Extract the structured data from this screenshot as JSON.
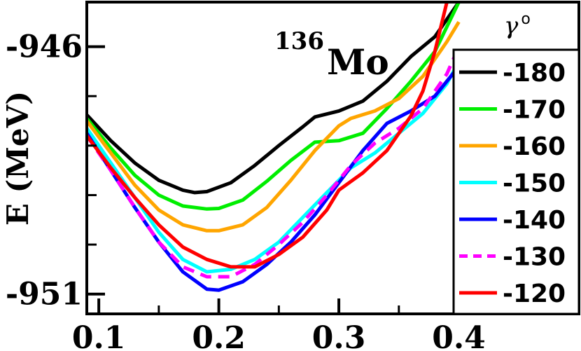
{
  "chart_data": {
    "type": "line",
    "title": "Mo",
    "title_superscript": "136",
    "xlabel": "",
    "ylabel": "E (MeV)",
    "xlim": [
      0.09,
      0.5
    ],
    "ylim": [
      -951.4,
      -945.1
    ],
    "xticks": [
      0.1,
      0.2,
      0.3,
      0.4
    ],
    "xtick_labels": [
      "0.1",
      "0.2",
      "0.3",
      "0.4"
    ],
    "yticks": [
      -946,
      -951
    ],
    "ytick_labels": [
      "-946",
      "-951"
    ],
    "legend_title": "γ",
    "legend_title_superscript": "o",
    "legend_position": "right",
    "series": [
      {
        "name": "-180",
        "color": "#000000",
        "dash": "solid",
        "x": [
          0.09,
          0.11,
          0.13,
          0.15,
          0.17,
          0.18,
          0.19,
          0.21,
          0.23,
          0.25,
          0.27,
          0.28,
          0.3,
          0.32,
          0.34,
          0.36,
          0.38,
          0.4
        ],
        "y": [
          -947.38,
          -947.9,
          -948.35,
          -948.7,
          -948.9,
          -948.95,
          -948.93,
          -948.75,
          -948.4,
          -948.0,
          -947.62,
          -947.42,
          -947.3,
          -947.1,
          -946.7,
          -946.2,
          -945.8,
          -945.1
        ]
      },
      {
        "name": "-170",
        "color": "#00ee00",
        "dash": "solid",
        "x": [
          0.09,
          0.11,
          0.13,
          0.15,
          0.17,
          0.19,
          0.2,
          0.22,
          0.24,
          0.26,
          0.28,
          0.3,
          0.32,
          0.34,
          0.36,
          0.38,
          0.4
        ],
        "y": [
          -947.45,
          -948.05,
          -948.6,
          -949.0,
          -949.22,
          -949.28,
          -949.27,
          -949.1,
          -948.72,
          -948.3,
          -947.93,
          -947.9,
          -947.75,
          -947.25,
          -946.7,
          -946.1,
          -945.1
        ]
      },
      {
        "name": "-160",
        "color": "#ffa500",
        "dash": "solid",
        "x": [
          0.09,
          0.11,
          0.13,
          0.15,
          0.17,
          0.19,
          0.2,
          0.22,
          0.24,
          0.26,
          0.28,
          0.3,
          0.31,
          0.33,
          0.35,
          0.37,
          0.39,
          0.4
        ],
        "y": [
          -947.5,
          -948.15,
          -948.8,
          -949.3,
          -949.6,
          -949.72,
          -949.72,
          -949.6,
          -949.25,
          -948.7,
          -948.1,
          -947.6,
          -947.45,
          -947.3,
          -947.05,
          -946.6,
          -945.9,
          -945.5
        ]
      },
      {
        "name": "-150",
        "color": "#00ffff",
        "dash": "solid",
        "x": [
          0.09,
          0.11,
          0.13,
          0.15,
          0.17,
          0.19,
          0.21,
          0.23,
          0.25,
          0.27,
          0.29,
          0.31,
          0.33,
          0.35,
          0.37,
          0.39,
          0.4
        ],
        "y": [
          -947.65,
          -948.35,
          -949.05,
          -949.75,
          -950.3,
          -950.55,
          -950.5,
          -950.3,
          -949.95,
          -949.45,
          -948.95,
          -948.45,
          -948.15,
          -947.75,
          -947.35,
          -946.75,
          -946.3
        ]
      },
      {
        "name": "-140",
        "color": "#0000ff",
        "dash": "solid",
        "x": [
          0.09,
          0.11,
          0.13,
          0.15,
          0.17,
          0.19,
          0.2,
          0.22,
          0.24,
          0.26,
          0.28,
          0.3,
          0.32,
          0.34,
          0.36,
          0.38,
          0.4
        ],
        "y": [
          -947.75,
          -948.5,
          -949.25,
          -949.95,
          -950.55,
          -950.9,
          -950.92,
          -950.75,
          -950.4,
          -949.95,
          -949.4,
          -948.75,
          -948.1,
          -947.55,
          -947.3,
          -947.0,
          -946.4
        ]
      },
      {
        "name": "-130",
        "color": "#ff00ff",
        "dash": "dashed",
        "x": [
          0.09,
          0.11,
          0.13,
          0.15,
          0.17,
          0.19,
          0.21,
          0.23,
          0.25,
          0.27,
          0.29,
          0.31,
          0.33,
          0.35,
          0.37,
          0.39,
          0.4
        ],
        "y": [
          -947.8,
          -948.5,
          -949.25,
          -949.95,
          -950.45,
          -950.65,
          -950.65,
          -950.4,
          -950.0,
          -949.55,
          -949.0,
          -948.4,
          -947.95,
          -947.65,
          -947.25,
          -946.55,
          -946.0
        ]
      },
      {
        "name": "-120",
        "color": "#ff0000",
        "dash": "solid",
        "x": [
          0.09,
          0.11,
          0.13,
          0.15,
          0.17,
          0.19,
          0.21,
          0.23,
          0.25,
          0.27,
          0.29,
          0.3,
          0.32,
          0.34,
          0.36,
          0.37,
          0.38,
          0.39
        ],
        "y": [
          -947.8,
          -948.45,
          -949.05,
          -949.6,
          -950.05,
          -950.3,
          -950.45,
          -950.45,
          -950.2,
          -949.85,
          -949.3,
          -948.9,
          -948.55,
          -948.1,
          -947.4,
          -946.9,
          -946.1,
          -945.1
        ]
      }
    ]
  }
}
